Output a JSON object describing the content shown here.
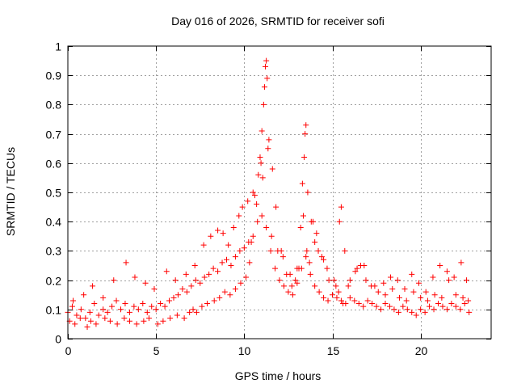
{
  "chart_data": {
    "type": "scatter",
    "title": "Day 016 of 2026, SRMTID for receiver sofi",
    "xlabel": "GPS time / hours",
    "ylabel": "SRMTID / TECUs",
    "xlim": [
      0,
      24
    ],
    "ylim": [
      0,
      1
    ],
    "xticks": [
      0,
      5,
      10,
      15,
      20
    ],
    "xtick_labels": [
      "0",
      "5",
      "10",
      "15",
      "20"
    ],
    "yticks": [
      0,
      0.1,
      0.2,
      0.3,
      0.4,
      0.5,
      0.6,
      0.7,
      0.8,
      0.9,
      1
    ],
    "ytick_labels": [
      "0",
      "0.1",
      "0.2",
      "0.3",
      "0.4",
      "0.5",
      "0.6",
      "0.7",
      "0.8",
      "0.9",
      "1"
    ],
    "grid": true,
    "marker": "+",
    "series_color": "#ff0000",
    "series": [
      {
        "name": "SRMTID",
        "x": [
          0.0,
          0.25,
          0.5,
          0.75,
          1.0,
          1.25,
          1.5,
          1.75,
          2.0,
          2.25,
          2.5,
          2.75,
          3.0,
          3.25,
          3.5,
          3.75,
          4.0,
          4.25,
          4.5,
          4.75,
          5.0,
          5.25,
          5.5,
          5.75,
          6.0,
          6.25,
          6.5,
          6.75,
          7.0,
          7.25,
          7.5,
          7.75,
          8.0,
          8.25,
          8.5,
          8.75,
          9.0,
          9.25,
          9.5,
          9.75,
          10.0,
          10.25,
          10.5,
          10.75,
          11.0,
          11.25,
          11.5,
          11.75,
          12.0,
          12.25,
          12.5,
          12.75,
          13.0,
          13.25,
          13.5,
          13.75,
          14.0,
          14.25,
          14.5,
          14.75,
          15.0,
          15.25,
          15.5,
          15.75,
          16.0,
          16.25,
          16.5,
          16.75,
          17.0,
          17.25,
          17.5,
          17.75,
          18.0,
          18.25,
          18.5,
          18.75,
          19.0,
          19.25,
          19.5,
          19.75,
          20.0,
          20.25,
          20.5,
          20.75,
          21.0,
          21.25,
          21.5,
          21.75,
          22.0,
          22.25,
          22.5,
          22.75,
          0.1,
          0.4,
          0.7,
          1.1,
          1.3,
          1.6,
          2.1,
          2.4,
          2.8,
          3.2,
          3.5,
          3.9,
          4.3,
          4.6,
          5.1,
          5.4,
          5.8,
          6.2,
          6.6,
          6.9,
          7.1,
          7.3,
          7.6,
          7.9,
          8.3,
          8.6,
          8.9,
          9.2,
          9.5,
          9.8,
          10.1,
          10.3,
          10.4,
          10.6,
          10.8,
          10.9,
          11.0,
          11.1,
          11.15,
          11.2,
          11.25,
          11.3,
          11.4,
          11.6,
          11.8,
          12.1,
          12.4,
          12.7,
          13.0,
          13.2,
          13.3,
          13.4,
          13.45,
          13.5,
          13.6,
          13.8,
          14.0,
          14.2,
          14.5,
          14.8,
          15.2,
          15.4,
          15.5,
          15.7,
          16.0,
          16.4,
          16.8,
          17.2,
          17.6,
          18.0,
          18.4,
          18.8,
          19.2,
          19.6,
          20.0,
          20.4,
          20.8,
          21.2,
          21.6,
          22.0,
          22.4,
          22.7,
          0.3,
          0.9,
          1.4,
          2.0,
          2.6,
          3.3,
          3.8,
          4.4,
          4.9,
          5.6,
          6.1,
          6.7,
          7.2,
          7.7,
          8.1,
          8.5,
          8.8,
          9.1,
          9.4,
          9.7,
          9.9,
          10.2,
          10.5,
          10.7,
          10.95,
          11.05,
          11.35,
          11.55,
          11.9,
          12.2,
          12.6,
          12.9,
          13.1,
          13.35,
          13.55,
          13.7,
          13.9,
          14.1,
          14.4,
          14.7,
          15.1,
          15.35,
          15.6,
          15.9,
          16.3,
          16.6,
          16.9,
          17.4,
          17.9,
          18.3,
          18.7,
          19.1,
          19.5,
          19.9,
          20.3,
          20.7,
          21.1,
          21.5,
          21.9,
          22.3,
          22.6
        ],
        "y": [
          0.09,
          0.11,
          0.08,
          0.1,
          0.07,
          0.09,
          0.12,
          0.08,
          0.1,
          0.09,
          0.11,
          0.13,
          0.1,
          0.12,
          0.09,
          0.11,
          0.1,
          0.12,
          0.09,
          0.11,
          0.1,
          0.12,
          0.11,
          0.13,
          0.14,
          0.15,
          0.17,
          0.16,
          0.18,
          0.2,
          0.19,
          0.21,
          0.22,
          0.24,
          0.23,
          0.26,
          0.27,
          0.25,
          0.28,
          0.3,
          0.31,
          0.33,
          0.35,
          0.4,
          0.42,
          0.38,
          0.3,
          0.24,
          0.2,
          0.18,
          0.16,
          0.15,
          0.19,
          0.24,
          0.28,
          0.22,
          0.18,
          0.16,
          0.14,
          0.13,
          0.15,
          0.14,
          0.13,
          0.12,
          0.14,
          0.13,
          0.12,
          0.11,
          0.13,
          0.12,
          0.11,
          0.1,
          0.12,
          0.11,
          0.1,
          0.09,
          0.11,
          0.1,
          0.09,
          0.08,
          0.1,
          0.09,
          0.11,
          0.1,
          0.12,
          0.11,
          0.1,
          0.12,
          0.11,
          0.1,
          0.12,
          0.09,
          0.06,
          0.05,
          0.07,
          0.04,
          0.06,
          0.05,
          0.07,
          0.06,
          0.05,
          0.07,
          0.06,
          0.05,
          0.06,
          0.07,
          0.05,
          0.06,
          0.07,
          0.08,
          0.07,
          0.09,
          0.1,
          0.09,
          0.11,
          0.12,
          0.13,
          0.14,
          0.16,
          0.15,
          0.17,
          0.19,
          0.21,
          0.26,
          0.33,
          0.49,
          0.56,
          0.62,
          0.71,
          0.8,
          0.86,
          0.93,
          0.95,
          0.89,
          0.68,
          0.58,
          0.45,
          0.3,
          0.22,
          0.18,
          0.24,
          0.38,
          0.53,
          0.62,
          0.7,
          0.73,
          0.5,
          0.4,
          0.33,
          0.3,
          0.27,
          0.2,
          0.18,
          0.4,
          0.45,
          0.3,
          0.2,
          0.24,
          0.25,
          0.18,
          0.16,
          0.15,
          0.17,
          0.14,
          0.13,
          0.16,
          0.14,
          0.13,
          0.15,
          0.14,
          0.2,
          0.15,
          0.14,
          0.13,
          0.13,
          0.15,
          0.18,
          0.14,
          0.2,
          0.26,
          0.21,
          0.19,
          0.17,
          0.23,
          0.2,
          0.22,
          0.25,
          0.32,
          0.35,
          0.37,
          0.36,
          0.32,
          0.38,
          0.42,
          0.45,
          0.47,
          0.5,
          0.46,
          0.6,
          0.55,
          0.65,
          0.35,
          0.3,
          0.28,
          0.22,
          0.2,
          0.24,
          0.42,
          0.3,
          0.26,
          0.4,
          0.36,
          0.28,
          0.24,
          0.2,
          0.16,
          0.12,
          0.18,
          0.23,
          0.25,
          0.2,
          0.18,
          0.19,
          0.21,
          0.2,
          0.17,
          0.22,
          0.19,
          0.16,
          0.21,
          0.25,
          0.23,
          0.21,
          0.26,
          0.2
        ]
      }
    ]
  }
}
